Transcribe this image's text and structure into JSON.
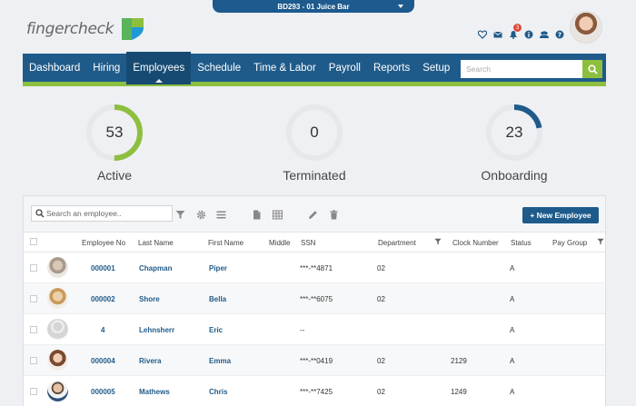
{
  "company": {
    "name": "BD293 - 01 Juice Bar"
  },
  "logo": {
    "text": "fingercheck"
  },
  "header": {
    "icons": [
      "heart-icon",
      "mail-icon",
      "bell-icon",
      "info-icon",
      "users-icon",
      "help-icon"
    ],
    "notification_count": "3"
  },
  "nav": {
    "items": [
      "Dashboard",
      "Hiring",
      "Employees",
      "Schedule",
      "Time & Labor",
      "Payroll",
      "Reports",
      "Setup"
    ],
    "active": "Employees",
    "search_placeholder": "Search"
  },
  "stats": [
    {
      "value": "53",
      "label": "Active",
      "fraction": 0.5
    },
    {
      "value": "0",
      "label": "Terminated",
      "fraction": 0
    },
    {
      "value": "23",
      "label": "Onboarding",
      "fraction": 0.22
    }
  ],
  "colors": {
    "primary": "#1f5b8a",
    "accent": "#8dbf3f",
    "ring_track": "#e6e8eb"
  },
  "toolbar": {
    "search_placeholder": "Search an employee..",
    "new_employee_label": "+ New Employee"
  },
  "table": {
    "headers": [
      "Employee No",
      "Last Name",
      "First Name",
      "Middle",
      "SSN",
      "Department",
      "Clock Number",
      "Status",
      "Pay Group"
    ],
    "rows": [
      {
        "employee_no": "000001",
        "last": "Chapman",
        "first": "Piper",
        "middle": "",
        "ssn": "***-**4871",
        "dept": "02",
        "clock": "",
        "status": "A",
        "pay_group": ""
      },
      {
        "employee_no": "000002",
        "last": "Shore",
        "first": "Bella",
        "middle": "",
        "ssn": "***-**6075",
        "dept": "02",
        "clock": "",
        "status": "A",
        "pay_group": ""
      },
      {
        "employee_no": "4",
        "last": "Lehnsherr",
        "first": "Eric",
        "middle": "",
        "ssn": "--",
        "dept": "",
        "clock": "",
        "status": "A",
        "pay_group": ""
      },
      {
        "employee_no": "000004",
        "last": "Rivera",
        "first": "Emma",
        "middle": "",
        "ssn": "***-**0419",
        "dept": "02",
        "clock": "2129",
        "status": "A",
        "pay_group": ""
      },
      {
        "employee_no": "000005",
        "last": "Mathews",
        "first": "Chris",
        "middle": "",
        "ssn": "***-**7425",
        "dept": "02",
        "clock": "1249",
        "status": "A",
        "pay_group": ""
      }
    ]
  }
}
